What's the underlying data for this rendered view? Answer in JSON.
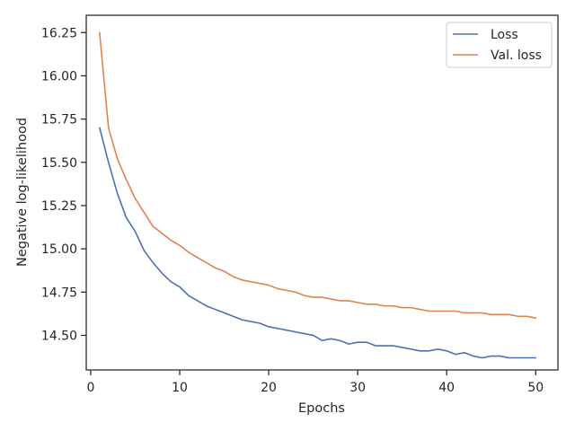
{
  "chart_data": {
    "type": "line",
    "title": "",
    "xlabel": "Epochs",
    "ylabel": "Negative log-likelihood",
    "xlim": [
      -0.5,
      52.5
    ],
    "ylim": [
      14.3,
      16.35
    ],
    "xticks": [
      0,
      10,
      20,
      30,
      40,
      50
    ],
    "xtick_labels": [
      "0",
      "10",
      "20",
      "30",
      "40",
      "50"
    ],
    "yticks": [
      14.5,
      14.75,
      15.0,
      15.25,
      15.5,
      15.75,
      16.0,
      16.25
    ],
    "ytick_labels": [
      "14.50",
      "14.75",
      "15.00",
      "15.25",
      "15.50",
      "15.75",
      "16.00",
      "16.25"
    ],
    "grid": false,
    "legend_position": "top-right",
    "x": [
      1,
      2,
      3,
      4,
      5,
      6,
      7,
      8,
      9,
      10,
      11,
      12,
      13,
      14,
      15,
      16,
      17,
      18,
      19,
      20,
      21,
      22,
      23,
      24,
      25,
      26,
      27,
      28,
      29,
      30,
      31,
      32,
      33,
      34,
      35,
      36,
      37,
      38,
      39,
      40,
      41,
      42,
      43,
      44,
      45,
      46,
      47,
      48,
      49,
      50
    ],
    "series": [
      {
        "name": "Loss",
        "color": "#4c72b0",
        "values": [
          15.7,
          15.5,
          15.32,
          15.18,
          15.1,
          14.99,
          14.92,
          14.86,
          14.81,
          14.78,
          14.73,
          14.7,
          14.67,
          14.65,
          14.63,
          14.61,
          14.59,
          14.58,
          14.57,
          14.55,
          14.54,
          14.53,
          14.52,
          14.51,
          14.5,
          14.47,
          14.48,
          14.47,
          14.45,
          14.46,
          14.46,
          14.44,
          14.44,
          14.44,
          14.43,
          14.42,
          14.41,
          14.41,
          14.42,
          14.41,
          14.39,
          14.4,
          14.38,
          14.37,
          14.38,
          14.38,
          14.37,
          14.37,
          14.37,
          14.37
        ]
      },
      {
        "name": "Val. loss",
        "color": "#dd8452",
        "values": [
          16.25,
          15.7,
          15.52,
          15.4,
          15.29,
          15.21,
          15.13,
          15.09,
          15.05,
          15.02,
          14.98,
          14.95,
          14.92,
          14.89,
          14.87,
          14.84,
          14.82,
          14.81,
          14.8,
          14.79,
          14.77,
          14.76,
          14.75,
          14.73,
          14.72,
          14.72,
          14.71,
          14.7,
          14.7,
          14.69,
          14.68,
          14.68,
          14.67,
          14.67,
          14.66,
          14.66,
          14.65,
          14.64,
          14.64,
          14.64,
          14.64,
          14.63,
          14.63,
          14.63,
          14.62,
          14.62,
          14.62,
          14.61,
          14.61,
          14.6
        ]
      }
    ]
  }
}
